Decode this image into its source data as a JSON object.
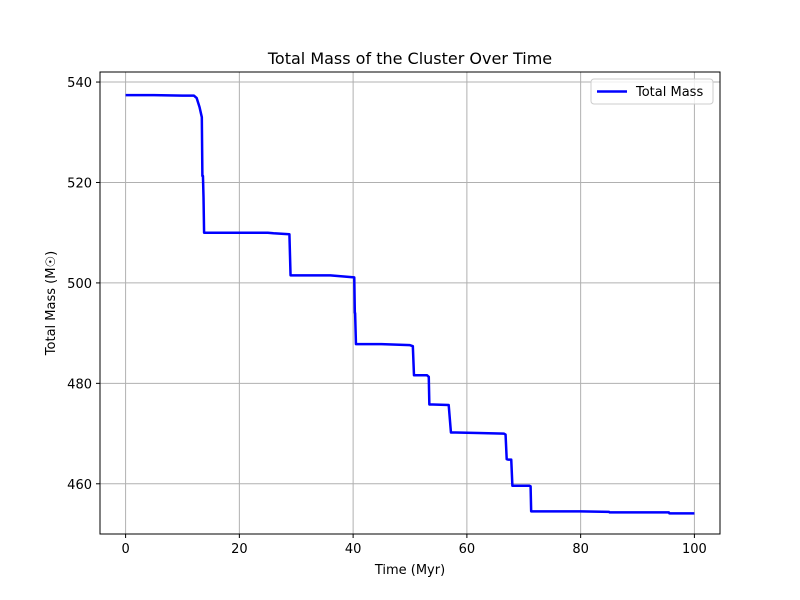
{
  "chart_data": {
    "type": "line",
    "title": "Total Mass of the Cluster Over Time",
    "xlabel": "Time (Myr)",
    "ylabel": "Total Mass (M☉)",
    "xlim": [
      -4.5,
      104.5
    ],
    "ylim": [
      450,
      542
    ],
    "xticks": [
      0,
      20,
      40,
      60,
      80,
      100
    ],
    "yticks": [
      460,
      480,
      500,
      520,
      540
    ],
    "grid": true,
    "legend_position": "top-right",
    "series": [
      {
        "name": "Total Mass",
        "color": "#0000ff",
        "x": [
          0,
          5,
          10,
          12,
          12.5,
          13.0,
          13.4,
          13.5,
          13.6,
          13.7,
          13.8,
          15,
          20,
          25,
          26,
          28.8,
          29.0,
          29.1,
          30,
          36,
          40.2,
          40.3,
          40.35,
          40.5,
          45,
          50,
          50.5,
          50.7,
          50.8,
          51,
          53,
          53.3,
          53.4,
          54,
          56.8,
          57.2,
          57.3,
          58,
          62,
          66.5,
          66.8,
          67.0,
          67.3,
          67.8,
          68.0,
          70,
          71.0,
          71.2,
          71.3,
          75,
          80,
          85.0,
          85.1,
          90,
          95.5,
          95.6,
          100
        ],
        "y": [
          537.4,
          537.4,
          537.3,
          537.3,
          536.8,
          535.0,
          533.0,
          521.3,
          521.3,
          517.0,
          510.0,
          510.0,
          510.0,
          510.0,
          509.9,
          509.7,
          501.5,
          501.5,
          501.5,
          501.5,
          501.1,
          494.0,
          494.0,
          487.8,
          487.8,
          487.6,
          487.4,
          481.6,
          481.6,
          481.6,
          481.6,
          481.3,
          475.8,
          475.8,
          475.7,
          470.2,
          470.2,
          470.2,
          470.1,
          470.0,
          469.8,
          464.9,
          464.8,
          464.8,
          459.6,
          459.6,
          459.6,
          459.5,
          454.5,
          454.5,
          454.5,
          454.4,
          454.3,
          454.3,
          454.3,
          454.1,
          454.1
        ]
      }
    ]
  }
}
